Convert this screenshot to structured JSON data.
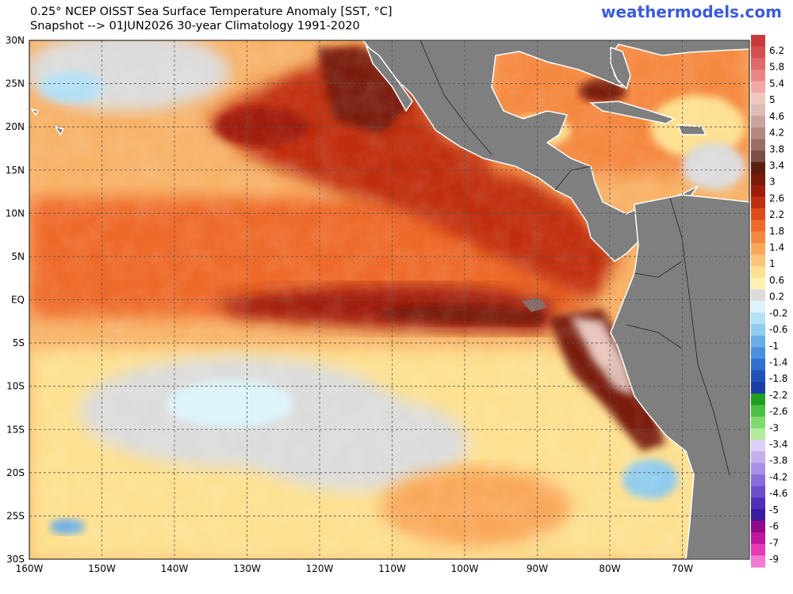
{
  "header": {
    "title_line1": "0.25° NCEP OISST Sea Surface Temperature Anomaly [SST, °C]",
    "title_line2": "Snapshot --> 01JUN2026   30-year Climatology 1991-2020",
    "brand": "weathermodels.com"
  },
  "map": {
    "lon_labels": [
      "160W",
      "150W",
      "140W",
      "130W",
      "120W",
      "110W",
      "100W",
      "90W",
      "80W",
      "70W"
    ],
    "lat_labels": [
      "30N",
      "25N",
      "20N",
      "15N",
      "10N",
      "5N",
      "EQ",
      "5S",
      "10S",
      "15S",
      "20S",
      "25S",
      "30S"
    ],
    "land_color": "#7f7f7f",
    "grid": "dashed"
  },
  "colorbar": {
    "labels": [
      "6.2",
      "5.8",
      "5.4",
      "5",
      "4.6",
      "4.2",
      "3.8",
      "3.4",
      "3",
      "2.6",
      "2.2",
      "1.8",
      "1.4",
      "1",
      "0.6",
      "0.2",
      "-0.2",
      "-0.6",
      "-1",
      "-1.4",
      "-1.8",
      "-2.2",
      "-2.6",
      "-3",
      "-3.4",
      "-3.8",
      "-4.2",
      "-4.6",
      "-5",
      "-6",
      "-7",
      "-9"
    ],
    "colors": [
      "#c83a3a",
      "#d45050",
      "#e06868",
      "#eb8484",
      "#f4a7a7",
      "#f0c6c0",
      "#dcbcb4",
      "#c8a49c",
      "#b48a80",
      "#9a6e64",
      "#7c4e46",
      "#5a1e10",
      "#7a1a0a",
      "#a01c0a",
      "#c02e10",
      "#dd4a1c",
      "#ee6a2a",
      "#f58840",
      "#f9a85a",
      "#fcc478",
      "#fde090",
      "#fff2b0",
      "#dcdcdc",
      "#dcf4fa",
      "#b4e0f4",
      "#90cced",
      "#6aaee6",
      "#4a8fdc",
      "#2f6fd0",
      "#1f52bc",
      "#1a3ea6",
      "#20a020",
      "#4cc044",
      "#80d870",
      "#b0ec9c",
      "#dccef4",
      "#c4b0ee",
      "#a890e6",
      "#8a6cda",
      "#6c4ecc",
      "#4e30b6",
      "#3a1a9e",
      "#900a8a",
      "#c0169e",
      "#e838b8",
      "#f27ad2"
    ]
  }
}
